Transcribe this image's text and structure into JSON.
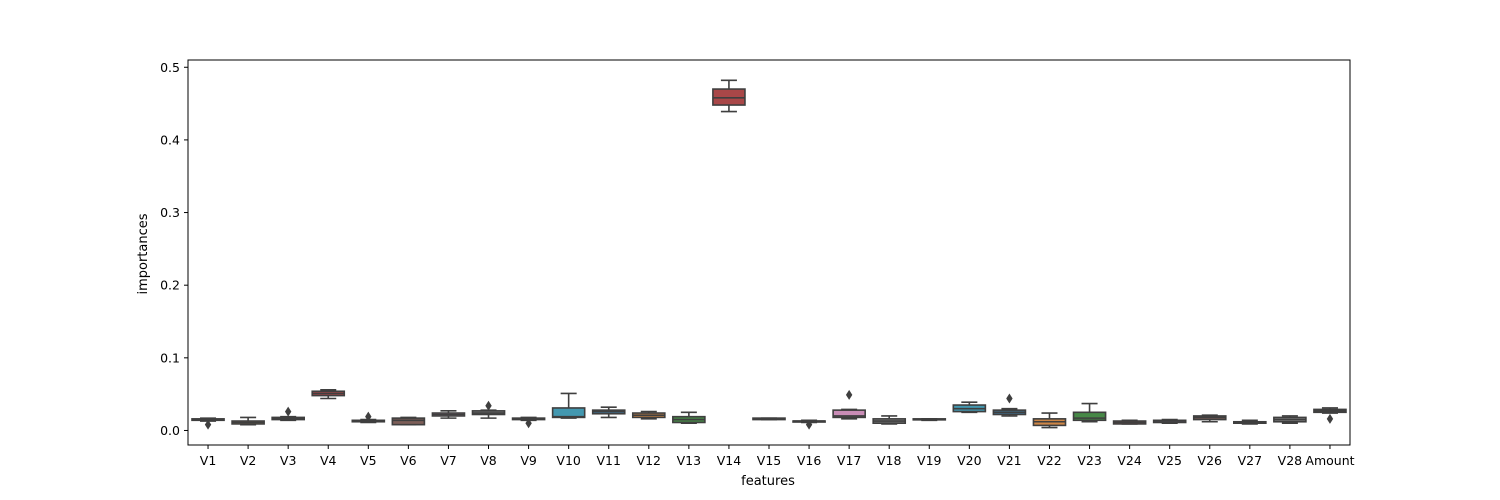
{
  "chart_data": {
    "type": "box",
    "title": "",
    "xlabel": "features",
    "ylabel": "importances",
    "ylim": [
      -0.02,
      0.51
    ],
    "yticks": [
      0.0,
      0.1,
      0.2,
      0.3,
      0.4,
      0.5
    ],
    "ytick_labels": [
      "0.0",
      "0.1",
      "0.2",
      "0.3",
      "0.4",
      "0.5"
    ],
    "grid": false,
    "categories": [
      "V1",
      "V2",
      "V3",
      "V4",
      "V5",
      "V6",
      "V7",
      "V8",
      "V9",
      "V10",
      "V11",
      "V12",
      "V13",
      "V14",
      "V15",
      "V16",
      "V17",
      "V18",
      "V19",
      "V20",
      "V21",
      "V22",
      "V23",
      "V24",
      "V25",
      "V26",
      "V27",
      "V28",
      "Amount"
    ],
    "boxes": [
      {
        "color": "#3274a1",
        "whislo": 0.013,
        "q1": 0.014,
        "med": 0.015,
        "q3": 0.016,
        "whishi": 0.017,
        "fliers": [
          0.008
        ]
      },
      {
        "color": "#e1812c",
        "whislo": 0.008,
        "q1": 0.009,
        "med": 0.011,
        "q3": 0.013,
        "whishi": 0.018,
        "fliers": []
      },
      {
        "color": "#3a923a",
        "whislo": 0.014,
        "q1": 0.015,
        "med": 0.016,
        "q3": 0.018,
        "whishi": 0.019,
        "fliers": [
          0.026
        ]
      },
      {
        "color": "#c03d3e",
        "whislo": 0.044,
        "q1": 0.048,
        "med": 0.051,
        "q3": 0.054,
        "whishi": 0.056,
        "fliers": []
      },
      {
        "color": "#9372b2",
        "whislo": 0.011,
        "q1": 0.012,
        "med": 0.013,
        "q3": 0.014,
        "whishi": 0.015,
        "fliers": [
          0.019
        ]
      },
      {
        "color": "#845b53",
        "whislo": 0.008,
        "q1": 0.008,
        "med": 0.014,
        "q3": 0.017,
        "whishi": 0.018,
        "fliers": []
      },
      {
        "color": "#d684bd",
        "whislo": 0.017,
        "q1": 0.02,
        "med": 0.022,
        "q3": 0.024,
        "whishi": 0.027,
        "fliers": []
      },
      {
        "color": "#7f7f7f",
        "whislo": 0.017,
        "q1": 0.022,
        "med": 0.024,
        "q3": 0.027,
        "whishi": 0.028,
        "fliers": [
          0.034
        ]
      },
      {
        "color": "#a9aa35",
        "whislo": 0.014,
        "q1": 0.015,
        "med": 0.016,
        "q3": 0.017,
        "whishi": 0.018,
        "fliers": [
          0.01
        ]
      },
      {
        "color": "#2ea0bf",
        "whislo": 0.017,
        "q1": 0.018,
        "med": 0.019,
        "q3": 0.031,
        "whishi": 0.051,
        "fliers": []
      },
      {
        "color": "#3274a1",
        "whislo": 0.018,
        "q1": 0.023,
        "med": 0.026,
        "q3": 0.028,
        "whishi": 0.032,
        "fliers": []
      },
      {
        "color": "#e1812c",
        "whislo": 0.016,
        "q1": 0.018,
        "med": 0.021,
        "q3": 0.024,
        "whishi": 0.026,
        "fliers": []
      },
      {
        "color": "#3a923a",
        "whislo": 0.01,
        "q1": 0.011,
        "med": 0.015,
        "q3": 0.019,
        "whishi": 0.025,
        "fliers": []
      },
      {
        "color": "#c03d3e",
        "whislo": 0.439,
        "q1": 0.448,
        "med": 0.458,
        "q3": 0.47,
        "whishi": 0.482,
        "fliers": []
      },
      {
        "color": "#9372b2",
        "whislo": 0.015,
        "q1": 0.015,
        "med": 0.016,
        "q3": 0.017,
        "whishi": 0.017,
        "fliers": []
      },
      {
        "color": "#845b53",
        "whislo": 0.011,
        "q1": 0.012,
        "med": 0.013,
        "q3": 0.013,
        "whishi": 0.014,
        "fliers": [
          0.008
        ]
      },
      {
        "color": "#d684bd",
        "whislo": 0.016,
        "q1": 0.018,
        "med": 0.02,
        "q3": 0.028,
        "whishi": 0.029,
        "fliers": [
          0.049
        ]
      },
      {
        "color": "#7f7f7f",
        "whislo": 0.009,
        "q1": 0.01,
        "med": 0.013,
        "q3": 0.016,
        "whishi": 0.02,
        "fliers": []
      },
      {
        "color": "#a9aa35",
        "whislo": 0.014,
        "q1": 0.015,
        "med": 0.015,
        "q3": 0.016,
        "whishi": 0.016,
        "fliers": []
      },
      {
        "color": "#2ea0bf",
        "whislo": 0.025,
        "q1": 0.026,
        "med": 0.03,
        "q3": 0.035,
        "whishi": 0.039,
        "fliers": []
      },
      {
        "color": "#3274a1",
        "whislo": 0.02,
        "q1": 0.022,
        "med": 0.025,
        "q3": 0.028,
        "whishi": 0.03,
        "fliers": [
          0.044
        ]
      },
      {
        "color": "#e1812c",
        "whislo": 0.004,
        "q1": 0.007,
        "med": 0.012,
        "q3": 0.016,
        "whishi": 0.024,
        "fliers": []
      },
      {
        "color": "#3a923a",
        "whislo": 0.012,
        "q1": 0.014,
        "med": 0.017,
        "q3": 0.025,
        "whishi": 0.037,
        "fliers": []
      },
      {
        "color": "#c03d3e",
        "whislo": 0.009,
        "q1": 0.009,
        "med": 0.011,
        "q3": 0.013,
        "whishi": 0.014,
        "fliers": []
      },
      {
        "color": "#9372b2",
        "whislo": 0.01,
        "q1": 0.011,
        "med": 0.013,
        "q3": 0.014,
        "whishi": 0.015,
        "fliers": []
      },
      {
        "color": "#845b53",
        "whislo": 0.012,
        "q1": 0.015,
        "med": 0.018,
        "q3": 0.02,
        "whishi": 0.021,
        "fliers": []
      },
      {
        "color": "#d684bd",
        "whislo": 0.009,
        "q1": 0.01,
        "med": 0.011,
        "q3": 0.012,
        "whishi": 0.014,
        "fliers": []
      },
      {
        "color": "#7f7f7f",
        "whislo": 0.01,
        "q1": 0.012,
        "med": 0.015,
        "q3": 0.018,
        "whishi": 0.02,
        "fliers": []
      },
      {
        "color": "#a9aa35",
        "whislo": 0.024,
        "q1": 0.025,
        "med": 0.027,
        "q3": 0.029,
        "whishi": 0.031,
        "fliers": [
          0.016
        ]
      }
    ]
  }
}
